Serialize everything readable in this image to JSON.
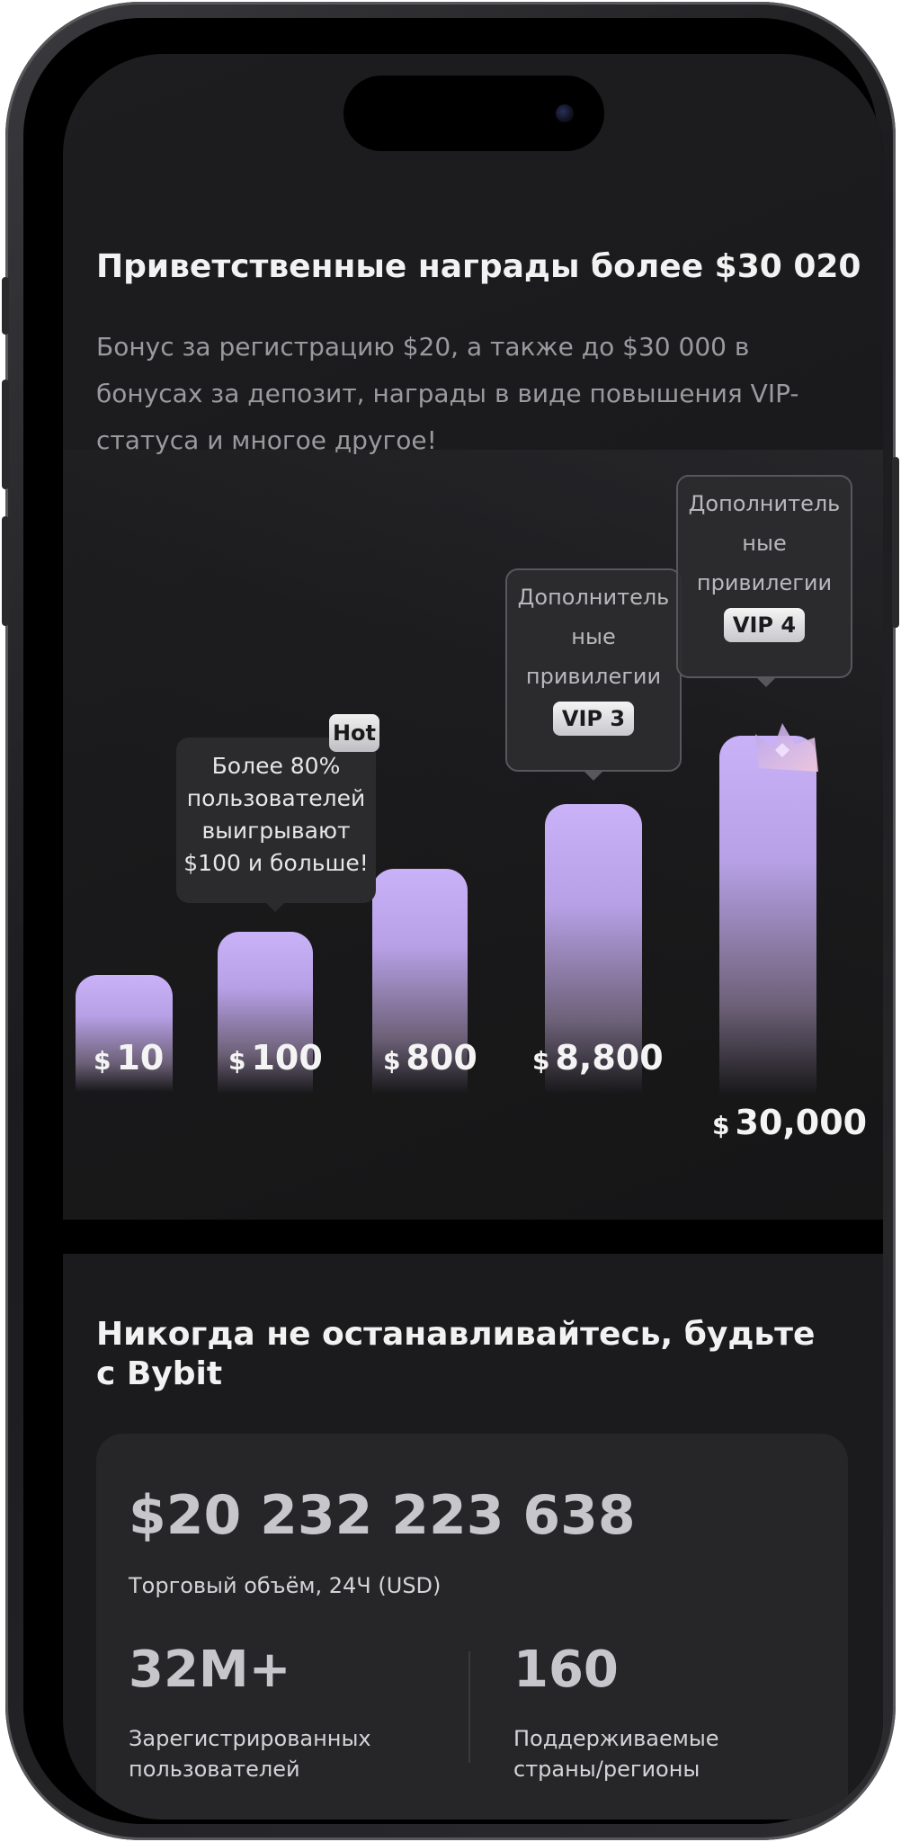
{
  "rewards": {
    "title": "Приветственные награды более $30 020",
    "description": "Бонус за регистрацию $20, а также до $30 000 в бонусах за депозит, награды в виде повышения VIP-статуса и многое другое!",
    "tiers": [
      {
        "currency": "$",
        "amount": "10",
        "value": 10
      },
      {
        "currency": "$",
        "amount": "100",
        "value": 100
      },
      {
        "currency": "$",
        "amount": "800",
        "value": 800
      },
      {
        "currency": "$",
        "amount": "8,800",
        "value": 8800
      },
      {
        "currency": "$",
        "amount": "30,000",
        "value": 30000
      }
    ],
    "hot_badge": "Hot",
    "hot_tooltip": {
      "line1": "Более 80%",
      "line2": "пользователей",
      "line3": "выигрывают",
      "line4": "$100 и больше!"
    },
    "vip3_tooltip": {
      "line1": "Дополнитель",
      "line2": "ные",
      "line3": "привилегии",
      "badge": "VIP 3"
    },
    "vip4_tooltip": {
      "line1": "Дополнитель",
      "line2": "ные",
      "line3": "привилегии",
      "badge": "VIP 4"
    },
    "bar_color": "#c9b2f8"
  },
  "stats_section": {
    "title": "Никогда не останавливайтесь, будьте с Bybit",
    "volume_value": "$20 232 223 638",
    "volume_label": "Торговый объём, 24Ч (USD)",
    "users_value": "32M+",
    "users_label_line1": "Зарегистрированных",
    "users_label_line2": "пользователей",
    "countries_value": "160",
    "countries_label_line1": "Поддерживаемые",
    "countries_label_line2": "страны/регионы"
  }
}
